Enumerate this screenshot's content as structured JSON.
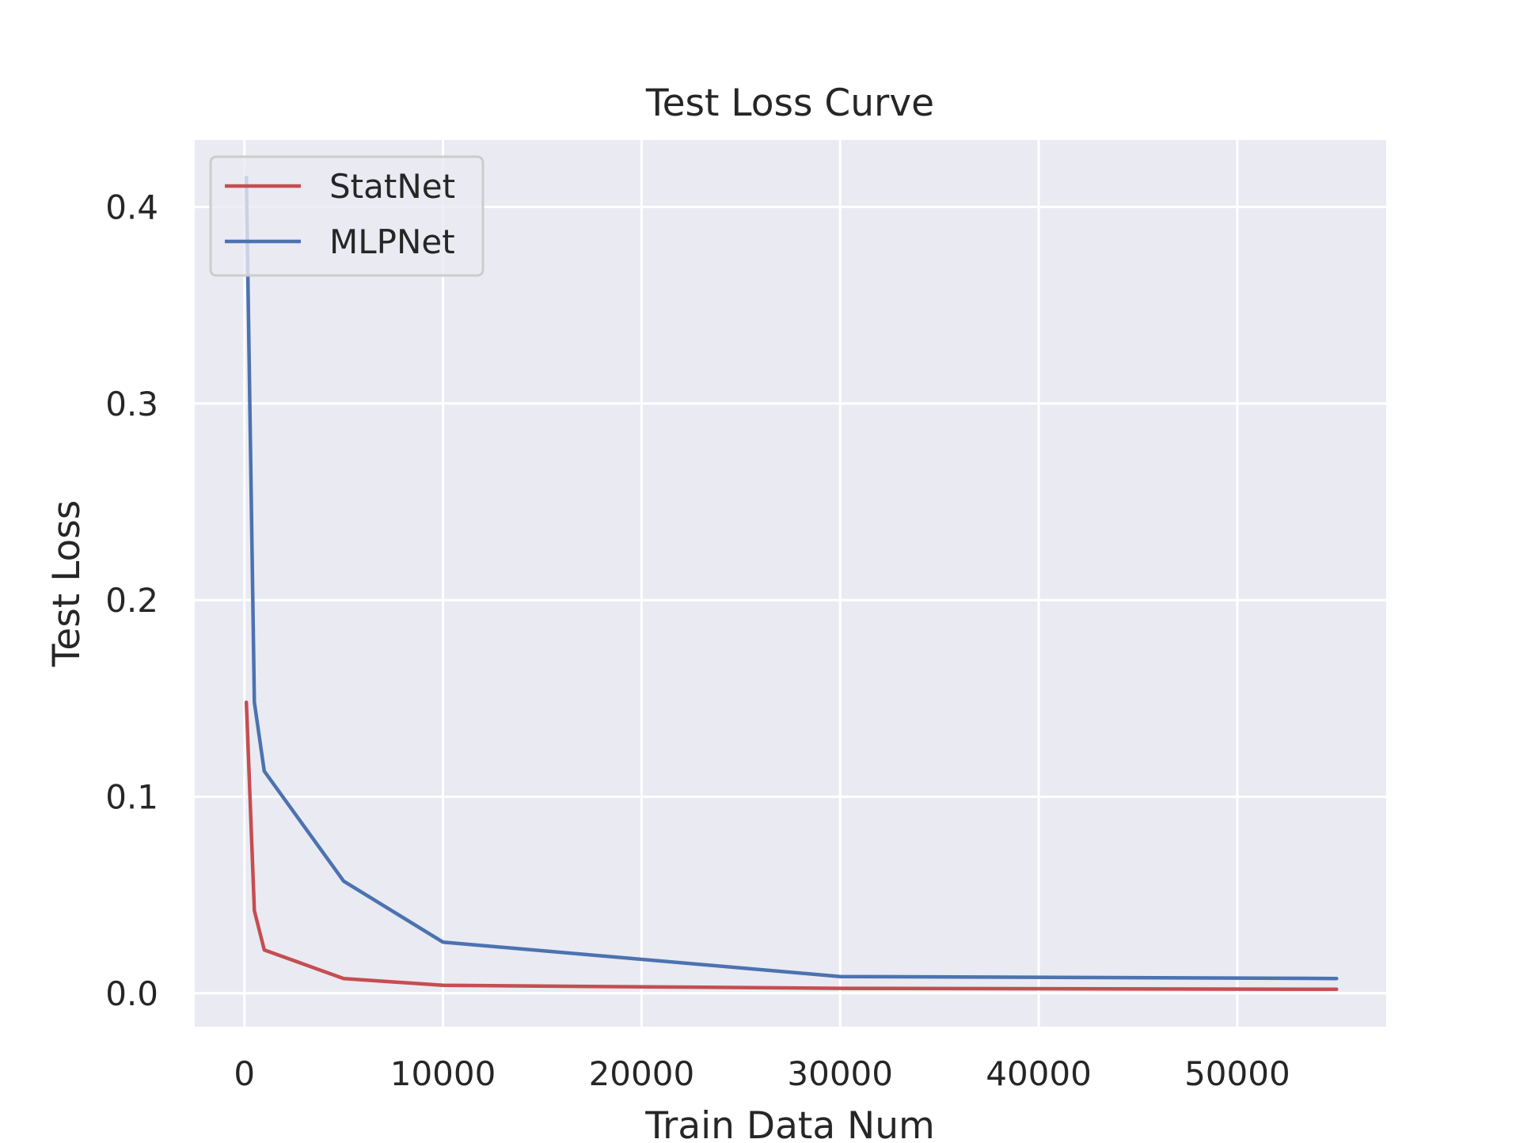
{
  "chart_data": {
    "type": "line",
    "title": "Test Loss Curve",
    "xlabel": "Train Data Num",
    "ylabel": "Test Loss",
    "xlim": [
      -2500,
      57500
    ],
    "ylim": [
      -0.017,
      0.434
    ],
    "xticks": [
      0,
      10000,
      20000,
      30000,
      40000,
      50000
    ],
    "xtick_labels": [
      "0",
      "10000",
      "20000",
      "30000",
      "40000",
      "50000"
    ],
    "yticks": [
      0.0,
      0.1,
      0.2,
      0.3,
      0.4
    ],
    "ytick_labels": [
      "0.0",
      "0.1",
      "0.2",
      "0.3",
      "0.4"
    ],
    "grid": true,
    "legend_position": "top-left",
    "background_color": "#eaeaf2",
    "grid_color": "#ffffff",
    "x": [
      100,
      500,
      1000,
      5000,
      10000,
      30000,
      55000
    ],
    "series": [
      {
        "name": "StatNet",
        "color": "#c44e52",
        "values": [
          0.148,
          0.042,
          0.022,
          0.0075,
          0.004,
          0.0025,
          0.002
        ]
      },
      {
        "name": "MLPNet",
        "color": "#4c72b0",
        "values": [
          0.415,
          0.148,
          0.113,
          0.057,
          0.026,
          0.0085,
          0.0075
        ]
      }
    ]
  }
}
